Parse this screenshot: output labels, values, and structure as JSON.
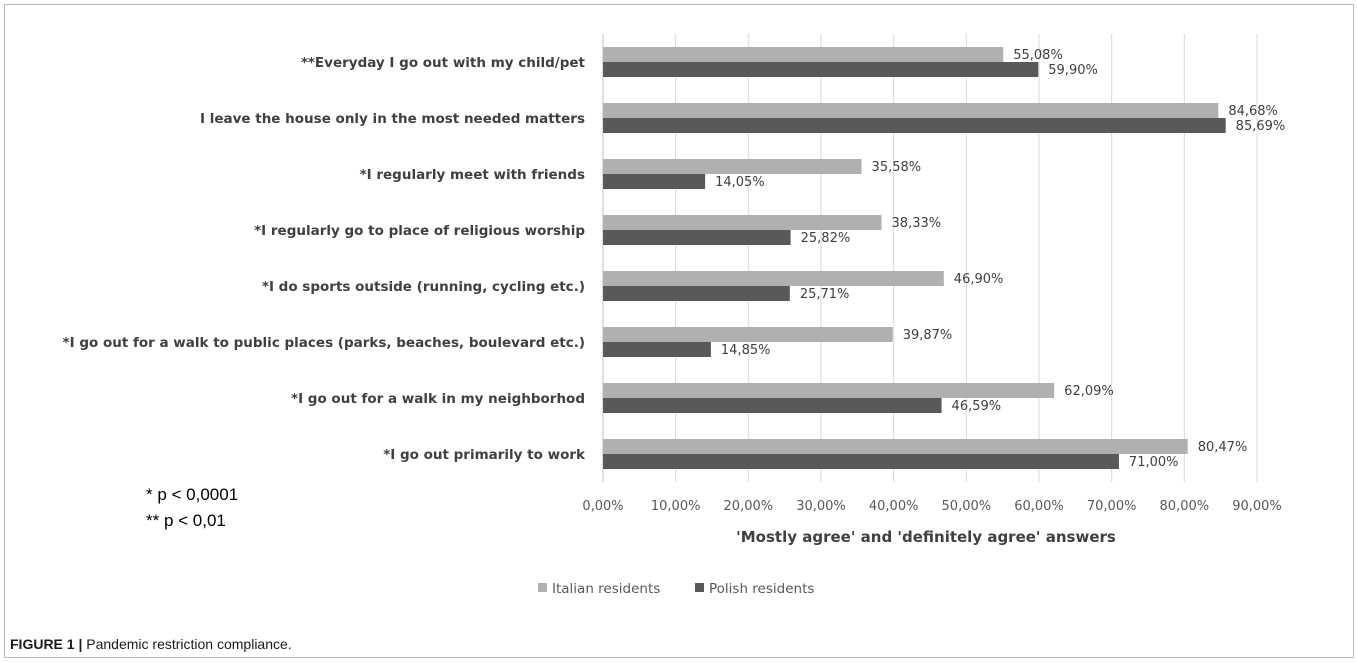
{
  "chart_data": {
    "type": "bar",
    "orientation": "horizontal",
    "categories": [
      "**Everyday I go out with my child/pet",
      "I leave the house only in the most needed matters",
      "*I regularly meet with friends",
      "*I regularly go to place of religious worship",
      "*I do sports outside (running, cycling etc.)",
      "*I go out for a walk to public places (parks, beaches, boulevard etc.)",
      "*I go out for a walk in my neighborhod",
      "*I go out primarily to work"
    ],
    "series": [
      {
        "name": "Italian residents",
        "color": "#b0b0b0",
        "values": [
          55.08,
          84.68,
          35.58,
          38.33,
          46.9,
          39.87,
          62.09,
          80.47
        ],
        "labels": [
          "55,08%",
          "84,68%",
          "35,58%",
          "38,33%",
          "46,90%",
          "39,87%",
          "62,09%",
          "80,47%"
        ]
      },
      {
        "name": "Polish residents",
        "color": "#595959",
        "values": [
          59.9,
          85.69,
          14.05,
          25.82,
          25.71,
          14.85,
          46.59,
          71.0
        ],
        "labels": [
          "59,90%",
          "85,69%",
          "14,05%",
          "25,82%",
          "25,71%",
          "14,85%",
          "46,59%",
          "71,00%"
        ]
      }
    ],
    "xlim": [
      0,
      90
    ],
    "xticks": [
      "0,00%",
      "10,00%",
      "20,00%",
      "30,00%",
      "40,00%",
      "50,00%",
      "60,00%",
      "70,00%",
      "80,00%",
      "90,00%"
    ],
    "xlabel": "'Mostly agree' and 'definitely agree' answers",
    "grid": true,
    "legend_position": "bottom"
  },
  "notes": [
    "* p < 0,0001",
    "** p < 0,01"
  ],
  "caption": {
    "label": "FIGURE 1 |",
    "text": " Pandemic restriction compliance."
  }
}
